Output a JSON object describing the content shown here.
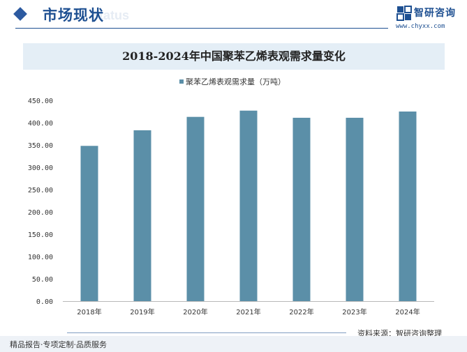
{
  "header": {
    "title": "市场现状",
    "subtitle_en": "Status"
  },
  "brand": {
    "name": "智研咨询",
    "url": "www.chyxx.com"
  },
  "colors": {
    "accent": "#1d4f91",
    "bar": "#5b8fa8",
    "title_band": "#e4eef6"
  },
  "chart_data": {
    "type": "bar",
    "title": "2018-2024年中国聚苯乙烯表观需求量变化",
    "categories": [
      "2018年",
      "2019年",
      "2020年",
      "2021年",
      "2022年",
      "2023年",
      "2024年"
    ],
    "series": [
      {
        "name": "聚苯乙烯表观需求量（万吨）",
        "values": [
          348,
          383,
          413,
          427,
          411,
          411,
          425
        ]
      }
    ],
    "y_ticks": [
      "0.00",
      "50.00",
      "100.00",
      "150.00",
      "200.00",
      "250.00",
      "300.00",
      "350.00",
      "400.00",
      "450.00"
    ],
    "ylim": [
      0,
      450
    ],
    "xlabel": "",
    "ylabel": "",
    "legend_position": "top-center",
    "grid": false
  },
  "source": "资料来源：智研咨询整理",
  "footer": "精品报告·专项定制·品质服务"
}
